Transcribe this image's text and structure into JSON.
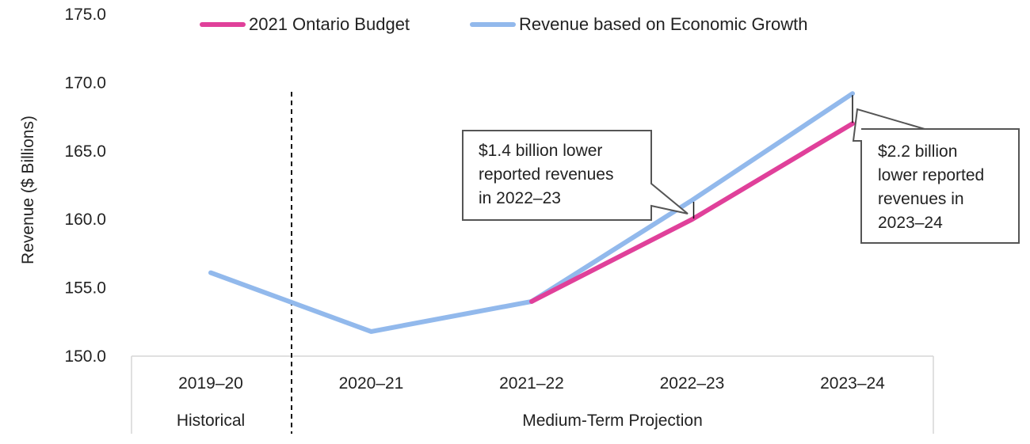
{
  "chart_data": {
    "type": "line",
    "categories": [
      "2019–20",
      "2020–21",
      "2021–22",
      "2022–23",
      "2023–24"
    ],
    "title": "",
    "xlabel": "",
    "ylabel": "Revenue ($ Billions)",
    "ylim": [
      150.0,
      175.0
    ],
    "yticks": [
      "150.0",
      "155.0",
      "160.0",
      "165.0",
      "170.0",
      "175.0"
    ],
    "grid": false,
    "legend": "top-center",
    "series": [
      {
        "name": "2021 Ontario Budget",
        "color": "#e0409a",
        "values": [
          null,
          null,
          154.0,
          160.0,
          167.0
        ]
      },
      {
        "name": "Revenue based on Economic Growth",
        "color": "#92b9ec",
        "values": [
          156.1,
          151.8,
          154.0,
          161.4,
          169.2
        ]
      }
    ],
    "periods": [
      {
        "label": "Historical"
      },
      {
        "label": "Medium-Term Projection"
      }
    ],
    "annotations": [
      {
        "lines": [
          "$1.4 billion lower",
          "reported revenues",
          "in 2022–23"
        ],
        "category": "2022–23"
      },
      {
        "lines": [
          "$2.2 billion",
          "lower reported",
          "revenues in",
          "2023–24"
        ],
        "category": "2023–24"
      }
    ]
  }
}
